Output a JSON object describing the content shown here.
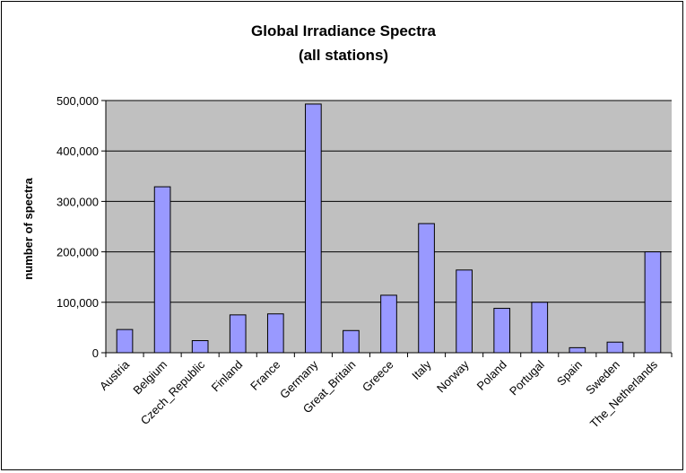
{
  "chart_data": {
    "type": "bar",
    "title": "Global Irradiance Spectra",
    "subtitle": "(all stations)",
    "xlabel": "",
    "ylabel": "number of spectra",
    "categories": [
      "Austria",
      "Belgium",
      "Czech_Republic",
      "Finland",
      "France",
      "Germany",
      "Great_Britain",
      "Greece",
      "Italy",
      "Norway",
      "Poland",
      "Portugal",
      "Spain",
      "Sweden",
      "The_Netherlands"
    ],
    "values": [
      46000,
      329000,
      24000,
      75000,
      77000,
      493000,
      44000,
      114000,
      256000,
      164000,
      88000,
      100000,
      10000,
      21000,
      200000
    ],
    "ylim": [
      0,
      500000
    ],
    "yticks": [
      "0",
      "100,000",
      "200,000",
      "300,000",
      "400,000",
      "500,000"
    ],
    "ytick_values": [
      0,
      100000,
      200000,
      300000,
      400000,
      500000
    ],
    "grid": true,
    "legend": "none",
    "colors": {
      "plot_bg": "#c0c0c0",
      "bar_fill": "#9999ff",
      "bar_stroke": "#000000",
      "grid": "#000000"
    }
  }
}
